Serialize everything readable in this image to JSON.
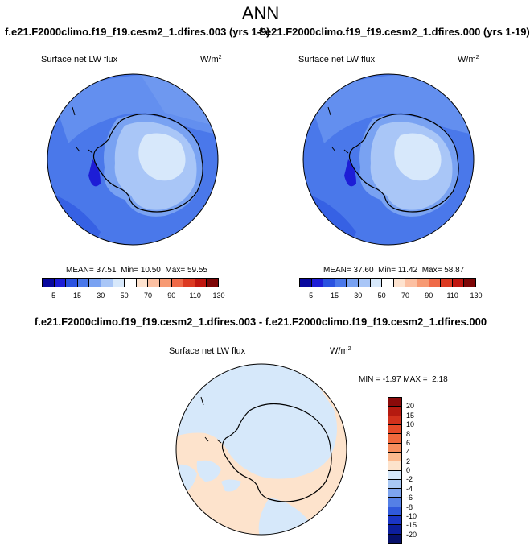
{
  "chart_data": [
    {
      "type": "heatmap",
      "projection": "south-polar-stereographic",
      "title": "ANN",
      "subtitle": "f.e21.F2000climo.f19_f19.cesm2_1.dfires.003 (yrs 1-9)",
      "variable": "Surface net LW flux",
      "units": "W/m",
      "units_power": "2",
      "stats": {
        "mean_label": "MEAN=",
        "mean": "37.51",
        "min_label": "Min=",
        "min": "10.50",
        "max_label": "Max=",
        "max": "59.55"
      },
      "colorbar": {
        "levels": [
          "5",
          "15",
          "30",
          "50",
          "70",
          "90",
          "110",
          "130"
        ],
        "colors": [
          "#08089e",
          "#1d1dd6",
          "#2a52e0",
          "#4a78ea",
          "#79a2f2",
          "#a9c6f7",
          "#d7e8fb",
          "#ffffff",
          "#fee3cf",
          "#fcc0a2",
          "#f79a73",
          "#ef6a48",
          "#dc3a22",
          "#c0160f",
          "#7e0606"
        ]
      }
    },
    {
      "type": "heatmap",
      "projection": "south-polar-stereographic",
      "subtitle": "f.e21.F2000climo.f19_f19.cesm2_1.dfires.000 (yrs 1-19)",
      "variable": "Surface net LW flux",
      "units": "W/m",
      "units_power": "2",
      "stats": {
        "mean_label": "MEAN=",
        "mean": "37.60",
        "min_label": "Min=",
        "min": "11.42",
        "max_label": "Max=",
        "max": "58.87"
      },
      "colorbar": {
        "levels": [
          "5",
          "15",
          "30",
          "50",
          "70",
          "90",
          "110",
          "130"
        ],
        "colors": [
          "#08089e",
          "#1d1dd6",
          "#2a52e0",
          "#4a78ea",
          "#79a2f2",
          "#a9c6f7",
          "#d7e8fb",
          "#ffffff",
          "#fee3cf",
          "#fcc0a2",
          "#f79a73",
          "#ef6a48",
          "#dc3a22",
          "#c0160f",
          "#7e0606"
        ]
      }
    },
    {
      "type": "heatmap",
      "projection": "south-polar-stereographic",
      "title": "f.e21.F2000climo.f19_f19.cesm2_1.dfires.003 - f.e21.F2000climo.f19_f19.cesm2_1.dfires.000",
      "variable": "Surface net LW flux",
      "units": "W/m",
      "units_power": "2",
      "stats": {
        "min_label": "MIN =",
        "min": "-1.97",
        "max_label": "MAX =",
        "max": "2.18"
      },
      "colorbar": {
        "levels_top_to_bottom": [
          "20",
          "15",
          "10",
          "8",
          "6",
          "4",
          "2",
          "0",
          "-2",
          "-4",
          "-6",
          "-8",
          "-10",
          "-15",
          "-20"
        ],
        "colors_top_to_bottom": [
          "#8b0a0a",
          "#b51a10",
          "#d2311c",
          "#e64a28",
          "#f0683c",
          "#f78d5d",
          "#fcb98e",
          "#fde3cc",
          "#d6e8fa",
          "#a9c8f4",
          "#7ea4ee",
          "#5580e6",
          "#3059dc",
          "#1a35c6",
          "#0c1e9c",
          "#06106a"
        ]
      }
    }
  ]
}
